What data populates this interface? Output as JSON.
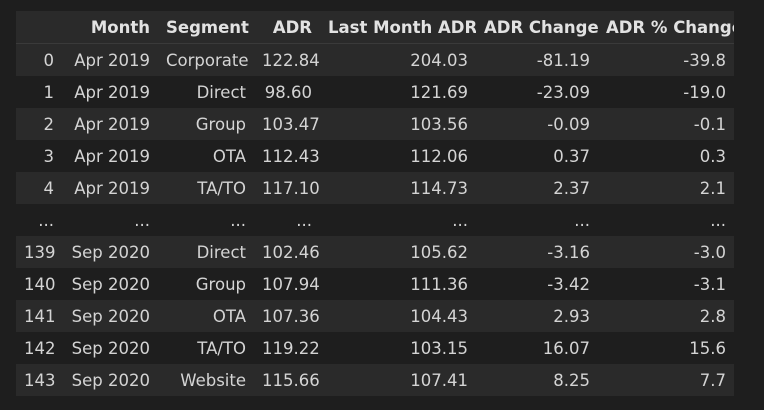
{
  "table": {
    "headers": [
      "",
      "Month",
      "Segment",
      "ADR",
      "Last Month ADR",
      "ADR Change",
      "ADR % Change"
    ],
    "rows": [
      [
        "0",
        "Apr 2019",
        "Corporate",
        "122.84",
        "204.03",
        "-81.19",
        "-39.8"
      ],
      [
        "1",
        "Apr 2019",
        "Direct",
        "98.60",
        "121.69",
        "-23.09",
        "-19.0"
      ],
      [
        "2",
        "Apr 2019",
        "Group",
        "103.47",
        "103.56",
        "-0.09",
        "-0.1"
      ],
      [
        "3",
        "Apr 2019",
        "OTA",
        "112.43",
        "112.06",
        "0.37",
        "0.3"
      ],
      [
        "4",
        "Apr 2019",
        "TA/TO",
        "117.10",
        "114.73",
        "2.37",
        "2.1"
      ],
      [
        "...",
        "...",
        "...",
        "...",
        "...",
        "...",
        "..."
      ],
      [
        "139",
        "Sep 2020",
        "Direct",
        "102.46",
        "105.62",
        "-3.16",
        "-3.0"
      ],
      [
        "140",
        "Sep 2020",
        "Group",
        "107.94",
        "111.36",
        "-3.42",
        "-3.1"
      ],
      [
        "141",
        "Sep 2020",
        "OTA",
        "107.36",
        "104.43",
        "2.93",
        "2.8"
      ],
      [
        "142",
        "Sep 2020",
        "TA/TO",
        "119.22",
        "103.15",
        "16.07",
        "15.6"
      ],
      [
        "143",
        "Sep 2020",
        "Website",
        "115.66",
        "107.41",
        "8.25",
        "7.7"
      ]
    ]
  }
}
